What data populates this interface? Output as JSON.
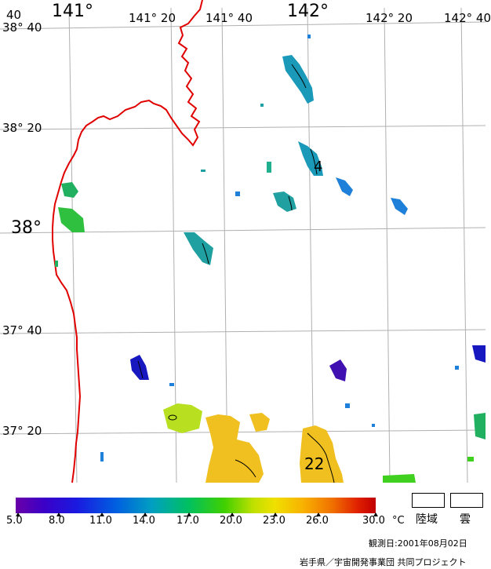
{
  "map": {
    "lon_labels": [
      "141°",
      "141° 20",
      "141° 40",
      "142°",
      "142° 20",
      "142° 40"
    ],
    "lat_labels": [
      "38° 40",
      "38° 20",
      "38°",
      "37° 40",
      "37° 20"
    ],
    "corner_label": "40",
    "contour_labels": [
      "4",
      "22"
    ],
    "colors": {
      "coastline": "#e00000",
      "grid": "#b0b0b0"
    }
  },
  "colorbar": {
    "unit": "°C",
    "ticks": [
      "5.0",
      "8.0",
      "11.0",
      "14.0",
      "17.0",
      "20.0",
      "23.0",
      "26.0",
      "30.0"
    ],
    "min": 5.0,
    "max": 30.0
  },
  "legend": {
    "land": "陸域",
    "cloud": "雲"
  },
  "footer": {
    "date": "観測日:2001年08月02日",
    "credit": "岩手県／宇宙開発事業団  共同プロジェクト"
  }
}
